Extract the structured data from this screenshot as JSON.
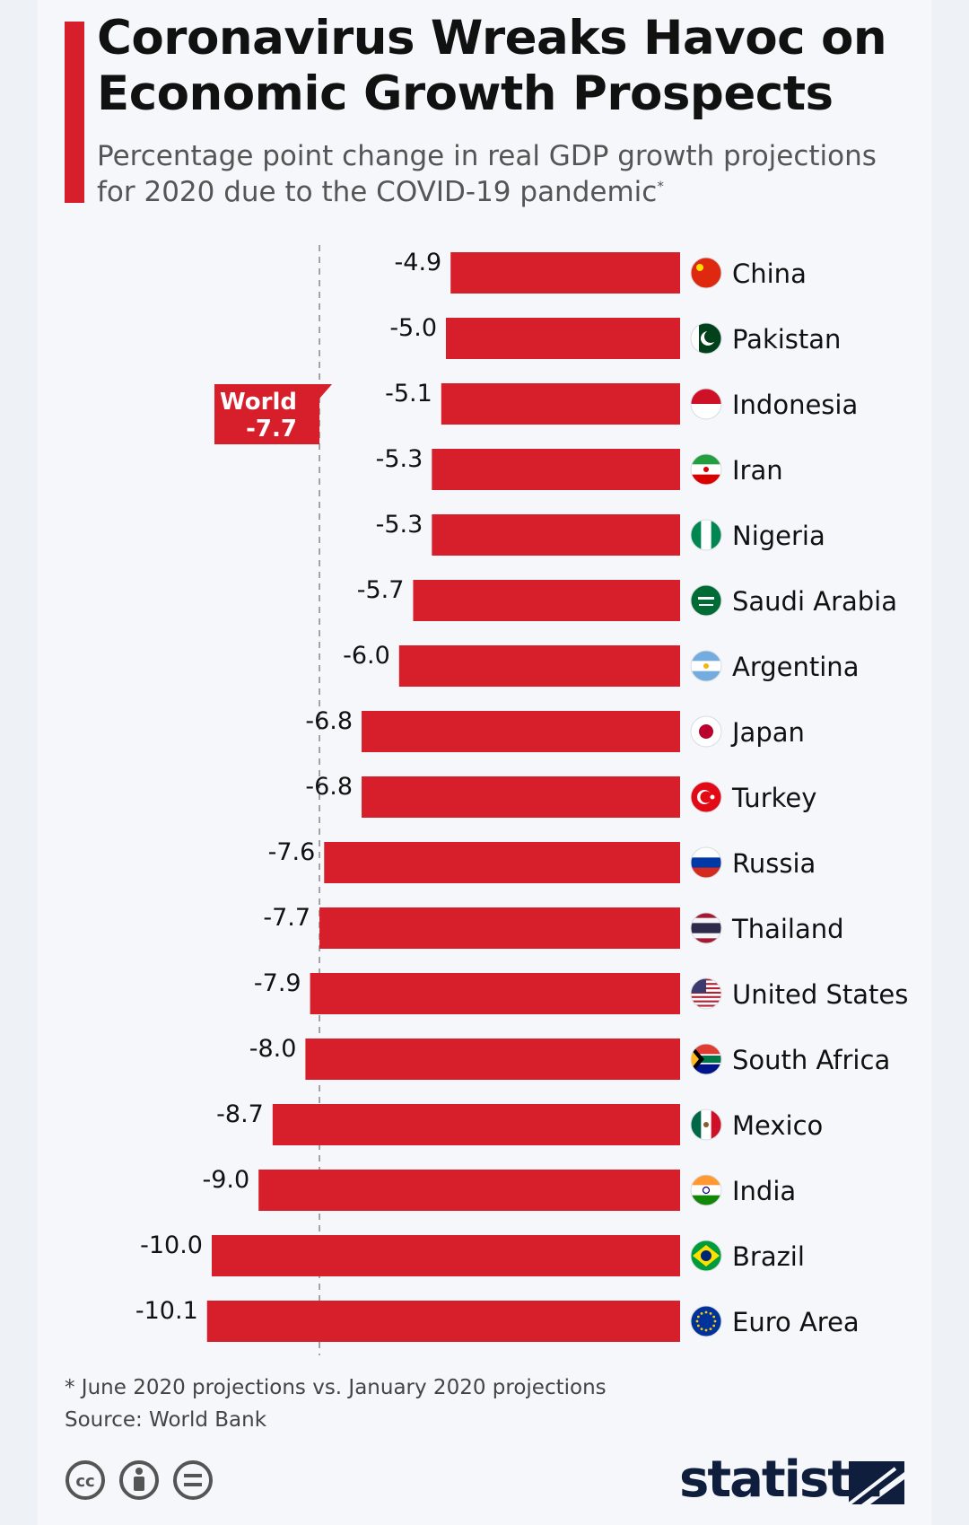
{
  "title": "Coronavirus Wreaks Havoc on Economic Growth Prospects",
  "subtitle": "Percentage point change in real GDP growth projections for 2020 due to the COVID-19 pandemic",
  "subtitle_marker": "*",
  "footnote": "* June 2020 projections vs. January 2020 projections",
  "source": "Source: World Bank",
  "brand": "statista",
  "colors": {
    "bar": "#d61f2b",
    "text": "#111111",
    "reference_line": "#888888"
  },
  "license_icons": [
    "cc-icon",
    "by-icon",
    "nd-icon"
  ],
  "chart_data": {
    "type": "bar",
    "orientation": "horizontal",
    "categories": [
      "China",
      "Pakistan",
      "Indonesia",
      "Iran",
      "Nigeria",
      "Saudi Arabia",
      "Argentina",
      "Japan",
      "Turkey",
      "Russia",
      "Thailand",
      "United States",
      "South Africa",
      "Mexico",
      "India",
      "Brazil",
      "Euro Area"
    ],
    "values": [
      -4.9,
      -5.0,
      -5.1,
      -5.3,
      -5.3,
      -5.7,
      -6.0,
      -6.8,
      -6.8,
      -7.6,
      -7.7,
      -7.9,
      -8.0,
      -8.7,
      -9.0,
      -10.0,
      -10.1
    ],
    "value_labels": [
      "-4.9",
      "-5.0",
      "-5.1",
      "-5.3",
      "-5.3",
      "-5.7",
      "-6.0",
      "-6.8",
      "-6.8",
      "-7.6",
      "-7.7",
      "-7.9",
      "-8.0",
      "-8.7",
      "-9.0",
      "-10.0",
      "-10.1"
    ],
    "flags": [
      "china-flag-icon",
      "pakistan-flag-icon",
      "indonesia-flag-icon",
      "iran-flag-icon",
      "nigeria-flag-icon",
      "saudi-arabia-flag-icon",
      "argentina-flag-icon",
      "japan-flag-icon",
      "turkey-flag-icon",
      "russia-flag-icon",
      "thailand-flag-icon",
      "united-states-flag-icon",
      "south-africa-flag-icon",
      "mexico-flag-icon",
      "india-flag-icon",
      "brazil-flag-icon",
      "euro-area-flag-icon"
    ],
    "reference": {
      "label": "World",
      "value": -7.7,
      "value_label": "-7.7"
    },
    "xlim": [
      -10.1,
      0
    ],
    "grid": false,
    "legend": false
  }
}
